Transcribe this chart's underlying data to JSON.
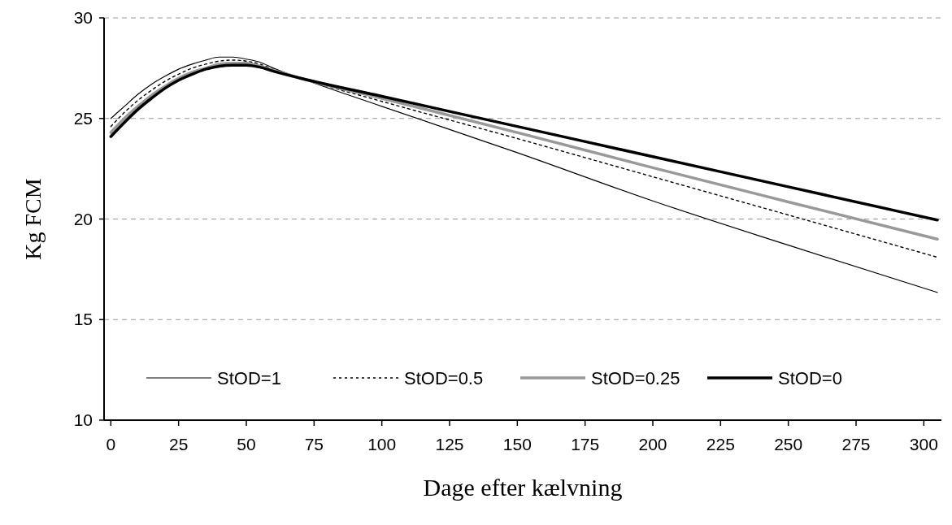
{
  "chart_data": {
    "type": "line",
    "xlabel": "Dage efter kælvning",
    "ylabel": "Kg FCM",
    "x": [
      0,
      5,
      10,
      15,
      20,
      25,
      30,
      35,
      40,
      45,
      50,
      55,
      60,
      70,
      100,
      150,
      200,
      250,
      305
    ],
    "series": [
      {
        "name": "StOD=1",
        "color": "#000000",
        "line_style": "solid",
        "values": [
          25.0,
          25.6,
          26.2,
          26.7,
          27.1,
          27.45,
          27.7,
          27.9,
          28.05,
          28.05,
          27.95,
          27.8,
          27.5,
          27.0,
          25.6,
          23.3,
          20.9,
          18.7,
          16.35
        ]
      },
      {
        "name": "StOD=0.5",
        "color": "#000000",
        "line_style": "dotted",
        "values": [
          24.6,
          25.3,
          25.9,
          26.4,
          26.85,
          27.2,
          27.5,
          27.7,
          27.85,
          27.9,
          27.85,
          27.7,
          27.45,
          27.0,
          25.85,
          24.0,
          22.1,
          20.2,
          18.1
        ]
      },
      {
        "name": "StOD=0.25",
        "color": "#999999",
        "line_style": "solid",
        "values": [
          24.3,
          25.0,
          25.6,
          26.15,
          26.6,
          27.0,
          27.3,
          27.5,
          27.7,
          27.75,
          27.75,
          27.6,
          27.4,
          27.0,
          26.0,
          24.3,
          22.55,
          20.85,
          19.0
        ]
      },
      {
        "name": "StOD=0",
        "color": "#000000",
        "line_style": "solid",
        "values": [
          24.1,
          24.8,
          25.45,
          26.0,
          26.5,
          26.9,
          27.2,
          27.45,
          27.6,
          27.65,
          27.65,
          27.55,
          27.35,
          27.0,
          26.1,
          24.6,
          23.1,
          21.6,
          19.95
        ]
      }
    ],
    "xlim": [
      -2.5,
      306.5
    ],
    "xticks": [
      0,
      25,
      50,
      75,
      100,
      125,
      150,
      175,
      200,
      225,
      250,
      275,
      300
    ],
    "ylim": [
      10,
      30
    ],
    "yticks": [
      10,
      15,
      20,
      25,
      30
    ],
    "grid": "y",
    "legend": "bottom"
  }
}
